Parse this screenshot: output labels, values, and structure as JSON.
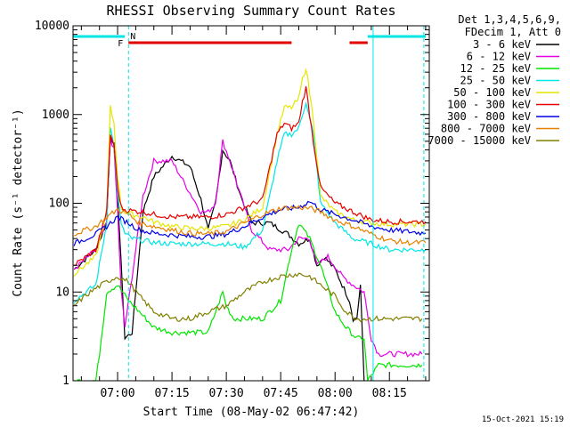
{
  "chart_data": {
    "type": "line",
    "title": "RHESSI Observing Summary Count Rates",
    "xlabel": "Start Time (08-May-02 06:47:42)",
    "ylabel": "Count Rate (s⁻¹ detector⁻¹)",
    "y_scale": "log",
    "ylim": [
      1,
      10000
    ],
    "xlim": [
      "06:47:42",
      "08:26:00"
    ],
    "x_ticks": [
      "07:00",
      "07:15",
      "07:30",
      "07:45",
      "08:00",
      "08:15"
    ],
    "y_ticks": [
      "1",
      "10",
      "100",
      "1000",
      "10000"
    ],
    "grid": false,
    "legend_position": "top-right",
    "legend_header": [
      "Det 1,3,4,5,6,9,",
      "FDecim 1, Att 0"
    ],
    "footer": "15-Oct-2021 15:19",
    "attenuator_marks": {
      "label": "N",
      "color": "#00e5e5",
      "segments": [
        [
          "06:47:42",
          "07:02:00"
        ],
        [
          "08:09:00",
          "08:25:00"
        ]
      ],
      "boundaries": [
        "07:03:00",
        "08:10:30",
        "08:24:30"
      ]
    },
    "flare_flag": {
      "label": "F",
      "color": "#e00000",
      "segments": [
        [
          "07:03:00",
          "07:48:00"
        ],
        [
          "08:04:00",
          "08:09:00"
        ]
      ]
    },
    "series": [
      {
        "name": "3 - 6 keV",
        "color": "#000000",
        "x": [
          "06:48",
          "06:54",
          "06:57",
          "06:58",
          "06:59",
          "07:00",
          "07:01",
          "07:02",
          "07:04",
          "07:07",
          "07:10",
          "07:15",
          "07:20",
          "07:23",
          "07:25",
          "07:27",
          "07:29",
          "07:31",
          "07:34",
          "07:37",
          "07:42",
          "07:47",
          "07:50",
          "07:53",
          "07:55",
          "07:57",
          "08:00",
          "08:02",
          "08:04",
          "08:05",
          "08:06",
          "08:07",
          "08:08"
        ],
        "y": [
          18,
          30,
          60,
          600,
          450,
          120,
          20,
          3,
          3.5,
          80,
          200,
          340,
          260,
          110,
          50,
          100,
          400,
          300,
          120,
          60,
          60,
          45,
          35,
          40,
          20,
          25,
          18,
          12,
          8,
          5,
          5,
          12,
          1
        ]
      },
      {
        "name": "6 - 12 keV",
        "color": "#e600e6",
        "x": [
          "06:48",
          "06:54",
          "06:57",
          "06:58",
          "06:59",
          "07:00",
          "07:01",
          "07:02",
          "07:04",
          "07:07",
          "07:10",
          "07:15",
          "07:20",
          "07:23",
          "07:25",
          "07:27",
          "07:29",
          "07:31",
          "07:34",
          "07:37",
          "07:42",
          "07:47",
          "07:50",
          "07:53",
          "07:55",
          "07:58",
          "08:02",
          "08:05",
          "08:08",
          "08:10",
          "08:12",
          "08:15",
          "08:18",
          "08:20",
          "08:24"
        ],
        "y": [
          18,
          30,
          60,
          550,
          400,
          80,
          10,
          4,
          15,
          120,
          300,
          300,
          130,
          80,
          80,
          100,
          500,
          300,
          120,
          50,
          30,
          30,
          40,
          40,
          20,
          25,
          15,
          12,
          10,
          3,
          2,
          2,
          2,
          2,
          2
        ]
      },
      {
        "name": "12 - 25 keV",
        "color": "#00e600",
        "x": [
          "06:48",
          "06:54",
          "06:55",
          "06:57",
          "07:00",
          "07:03",
          "07:06",
          "07:10",
          "07:15",
          "07:20",
          "07:25",
          "07:29",
          "07:30",
          "07:32",
          "07:35",
          "07:40",
          "07:45",
          "07:48",
          "07:50",
          "07:53",
          "07:56",
          "08:00",
          "08:03",
          "08:06",
          "08:08",
          "08:09",
          "08:12",
          "08:16",
          "08:20",
          "08:24"
        ],
        "y": [
          1,
          1,
          2,
          10,
          12,
          8,
          6,
          4,
          3.5,
          3.5,
          3.5,
          10,
          7,
          5,
          5,
          5,
          8,
          30,
          60,
          40,
          20,
          6,
          4,
          3,
          3,
          1,
          1.5,
          1.5,
          1.5,
          1.5
        ]
      },
      {
        "name": "25 - 50 keV",
        "color": "#00e5e5",
        "x": [
          "06:48",
          "06:54",
          "06:57",
          "06:58",
          "06:59",
          "07:00",
          "07:01",
          "07:02",
          "07:04",
          "07:07",
          "07:10",
          "07:15",
          "07:20",
          "07:25",
          "07:30",
          "07:35",
          "07:40",
          "07:44",
          "07:46",
          "07:48",
          "07:50",
          "07:51",
          "07:52",
          "07:54",
          "07:56",
          "08:00",
          "08:05",
          "08:10",
          "08:15",
          "08:20",
          "08:25"
        ],
        "y": [
          8,
          12,
          60,
          700,
          450,
          120,
          60,
          45,
          40,
          38,
          36,
          35,
          35,
          35,
          35,
          32,
          50,
          300,
          600,
          600,
          700,
          1000,
          1400,
          600,
          100,
          60,
          40,
          35,
          30,
          30,
          30
        ]
      },
      {
        "name": "50 - 100 keV",
        "color": "#e6e600",
        "x": [
          "06:48",
          "06:54",
          "06:57",
          "06:58",
          "06:59",
          "07:00",
          "07:01",
          "07:02",
          "07:04",
          "07:07",
          "07:10",
          "07:15",
          "07:20",
          "07:25",
          "07:30",
          "07:35",
          "07:40",
          "07:44",
          "07:46",
          "07:48",
          "07:50",
          "07:51",
          "07:52",
          "07:54",
          "07:56",
          "08:00",
          "08:05",
          "08:10",
          "08:15",
          "08:20",
          "08:25"
        ],
        "y": [
          16,
          25,
          80,
          1200,
          800,
          200,
          90,
          80,
          75,
          70,
          62,
          55,
          52,
          52,
          55,
          65,
          90,
          600,
          1200,
          1200,
          1500,
          2500,
          3400,
          900,
          120,
          80,
          65,
          60,
          58,
          58,
          58
        ]
      },
      {
        "name": "100 - 300 keV",
        "color": "#e60000",
        "x": [
          "06:48",
          "06:54",
          "06:57",
          "06:58",
          "06:59",
          "07:00",
          "07:01",
          "07:02",
          "07:04",
          "07:07",
          "07:10",
          "07:15",
          "07:20",
          "07:25",
          "07:30",
          "07:35",
          "07:40",
          "07:44",
          "07:46",
          "07:48",
          "07:50",
          "07:51",
          "07:52",
          "07:54",
          "07:56",
          "08:00",
          "08:05",
          "08:10",
          "08:15",
          "08:20",
          "08:25"
        ],
        "y": [
          20,
          30,
          80,
          600,
          450,
          150,
          90,
          85,
          82,
          80,
          75,
          70,
          70,
          70,
          75,
          90,
          110,
          600,
          800,
          700,
          800,
          1400,
          2000,
          500,
          150,
          100,
          80,
          65,
          62,
          62,
          62
        ]
      },
      {
        "name": "300 - 800 keV",
        "color": "#0000e6",
        "x": [
          "06:48",
          "06:54",
          "06:57",
          "07:00",
          "07:03",
          "07:06",
          "07:10",
          "07:15",
          "07:20",
          "07:25",
          "07:30",
          "07:35",
          "07:40",
          "07:45",
          "07:50",
          "07:53",
          "07:56",
          "08:00",
          "08:05",
          "08:10",
          "08:15",
          "08:20",
          "08:25"
        ],
        "y": [
          35,
          45,
          55,
          70,
          60,
          50,
          46,
          44,
          42,
          42,
          45,
          55,
          70,
          85,
          90,
          105,
          85,
          75,
          65,
          55,
          50,
          48,
          46
        ]
      },
      {
        "name": "800 - 7000 keV",
        "color": "#e68000",
        "x": [
          "06:48",
          "06:54",
          "06:57",
          "07:00",
          "07:03",
          "07:06",
          "07:10",
          "07:15",
          "07:20",
          "07:25",
          "07:30",
          "07:35",
          "07:40",
          "07:45",
          "07:50",
          "07:53",
          "07:56",
          "08:00",
          "08:05",
          "08:10",
          "08:15",
          "08:20",
          "08:25"
        ],
        "y": [
          45,
          55,
          70,
          85,
          75,
          60,
          55,
          50,
          46,
          45,
          48,
          60,
          75,
          88,
          90,
          88,
          80,
          65,
          55,
          45,
          38,
          36,
          36
        ]
      },
      {
        "name": "7000 - 15000 keV",
        "color": "#808000",
        "x": [
          "06:48",
          "06:51",
          "06:54",
          "06:57",
          "07:00",
          "07:03",
          "07:06",
          "07:10",
          "07:15",
          "07:20",
          "07:25",
          "07:30",
          "07:35",
          "07:40",
          "07:45",
          "07:50",
          "07:53",
          "07:56",
          "08:00",
          "08:03",
          "08:06",
          "08:09",
          "08:12",
          "08:16",
          "08:20",
          "08:24"
        ],
        "y": [
          7,
          9,
          11,
          13,
          15,
          13,
          9,
          6,
          5,
          5,
          6,
          7,
          10,
          13,
          15,
          16,
          15,
          12,
          9,
          6,
          5,
          5,
          5,
          5,
          5,
          5
        ]
      }
    ]
  }
}
